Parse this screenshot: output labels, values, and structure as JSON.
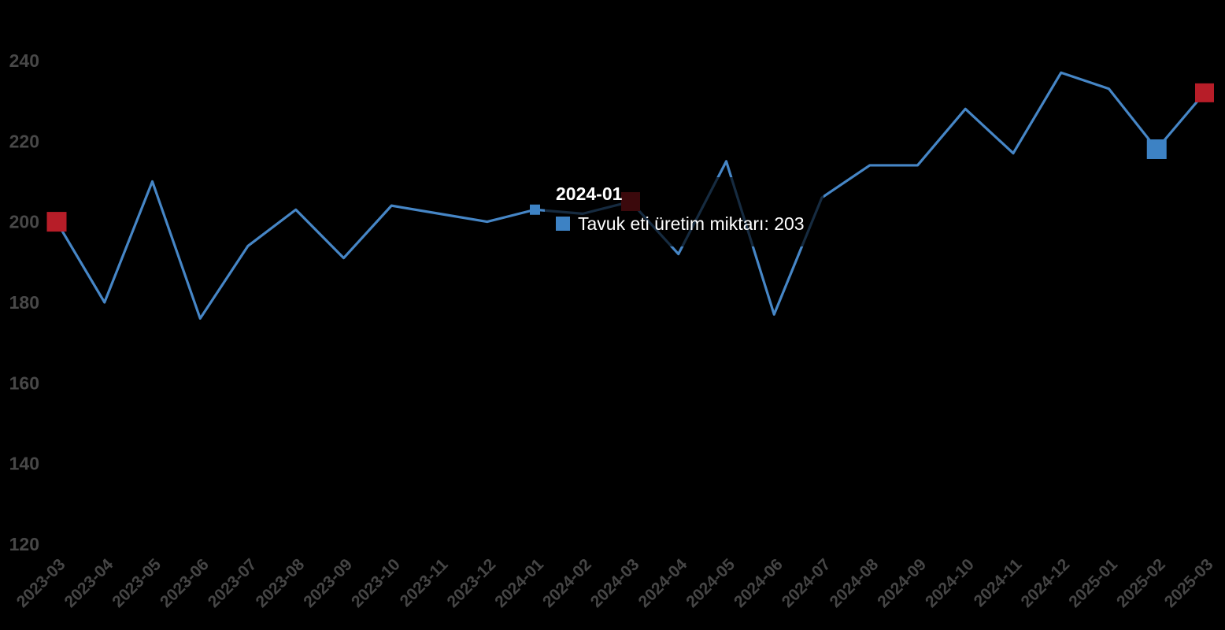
{
  "chart_data": {
    "type": "line",
    "title": "",
    "xlabel": "",
    "ylabel": "",
    "grid": false,
    "legend_position": "none",
    "background_color": "#000000",
    "axis_label_color": "#484848",
    "categories": [
      "2023-03",
      "2023-04",
      "2023-05",
      "2023-06",
      "2023-07",
      "2023-08",
      "2023-09",
      "2023-10",
      "2023-11",
      "2023-12",
      "2024-01",
      "2024-02",
      "2024-03",
      "2024-04",
      "2024-05",
      "2024-06",
      "2024-07",
      "2024-08",
      "2024-09",
      "2024-10",
      "2024-11",
      "2024-12",
      "2025-01",
      "2025-02",
      "2025-03"
    ],
    "series": [
      {
        "name": "Tavuk eti üretim miktarı",
        "color": "#4686c6",
        "values": [
          200,
          180,
          210,
          176,
          194,
          203,
          191,
          204,
          202,
          200,
          203,
          202,
          205,
          192,
          215,
          177,
          206,
          214,
          214,
          228,
          217,
          237,
          233,
          218,
          232
        ]
      }
    ],
    "yticks": [
      120,
      140,
      160,
      180,
      200,
      220,
      240
    ],
    "ylim": [
      120,
      240
    ],
    "highlight_markers": [
      {
        "category": "2023-03",
        "value": 200,
        "color": "#b71d28",
        "size": 25,
        "name": "marker-2023-03"
      },
      {
        "category": "2024-03",
        "value": 205,
        "color": "#b71d28",
        "size": 24,
        "name": "marker-2024-03"
      },
      {
        "category": "2025-03",
        "value": 232,
        "color": "#b71d28",
        "size": 24,
        "name": "marker-2025-03"
      },
      {
        "category": "2025-02",
        "value": 218,
        "color": "#3d82c4",
        "size": 25,
        "name": "marker-2025-02"
      },
      {
        "category": "2024-01",
        "value": 203,
        "color": "#3d82c4",
        "size": 13,
        "name": "marker-hovered-2024-01"
      }
    ]
  },
  "tooltip": {
    "title": "2024-01",
    "series_swatch_color": "#3d82c4",
    "text": "Tavuk eti üretim miktarı: 203"
  }
}
